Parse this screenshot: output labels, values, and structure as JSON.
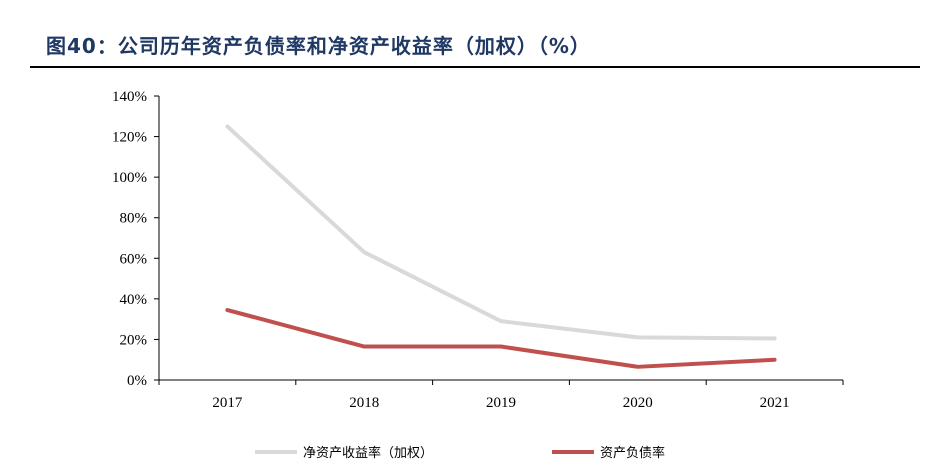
{
  "title": "图40：公司历年资产负债率和净资产收益率（加权）（%）",
  "chart_data": {
    "type": "line",
    "x": [
      "2017",
      "2018",
      "2019",
      "2020",
      "2021"
    ],
    "ylim": [
      0,
      140
    ],
    "ytick_values": [
      0,
      20,
      40,
      60,
      80,
      100,
      120,
      140
    ],
    "yticks": [
      "0%",
      "20%",
      "40%",
      "60%",
      "80%",
      "100%",
      "120%",
      "140%"
    ],
    "grid": false,
    "legend_position": "bottom",
    "series": [
      {
        "name": "净资产收益率（加权）",
        "color": "#d9d9d9",
        "values": [
          125,
          63,
          29,
          21,
          20.5
        ]
      },
      {
        "name": "资产负债率",
        "color": "#c0504d",
        "values": [
          34.5,
          16.5,
          16.5,
          6.5,
          10
        ]
      }
    ]
  }
}
